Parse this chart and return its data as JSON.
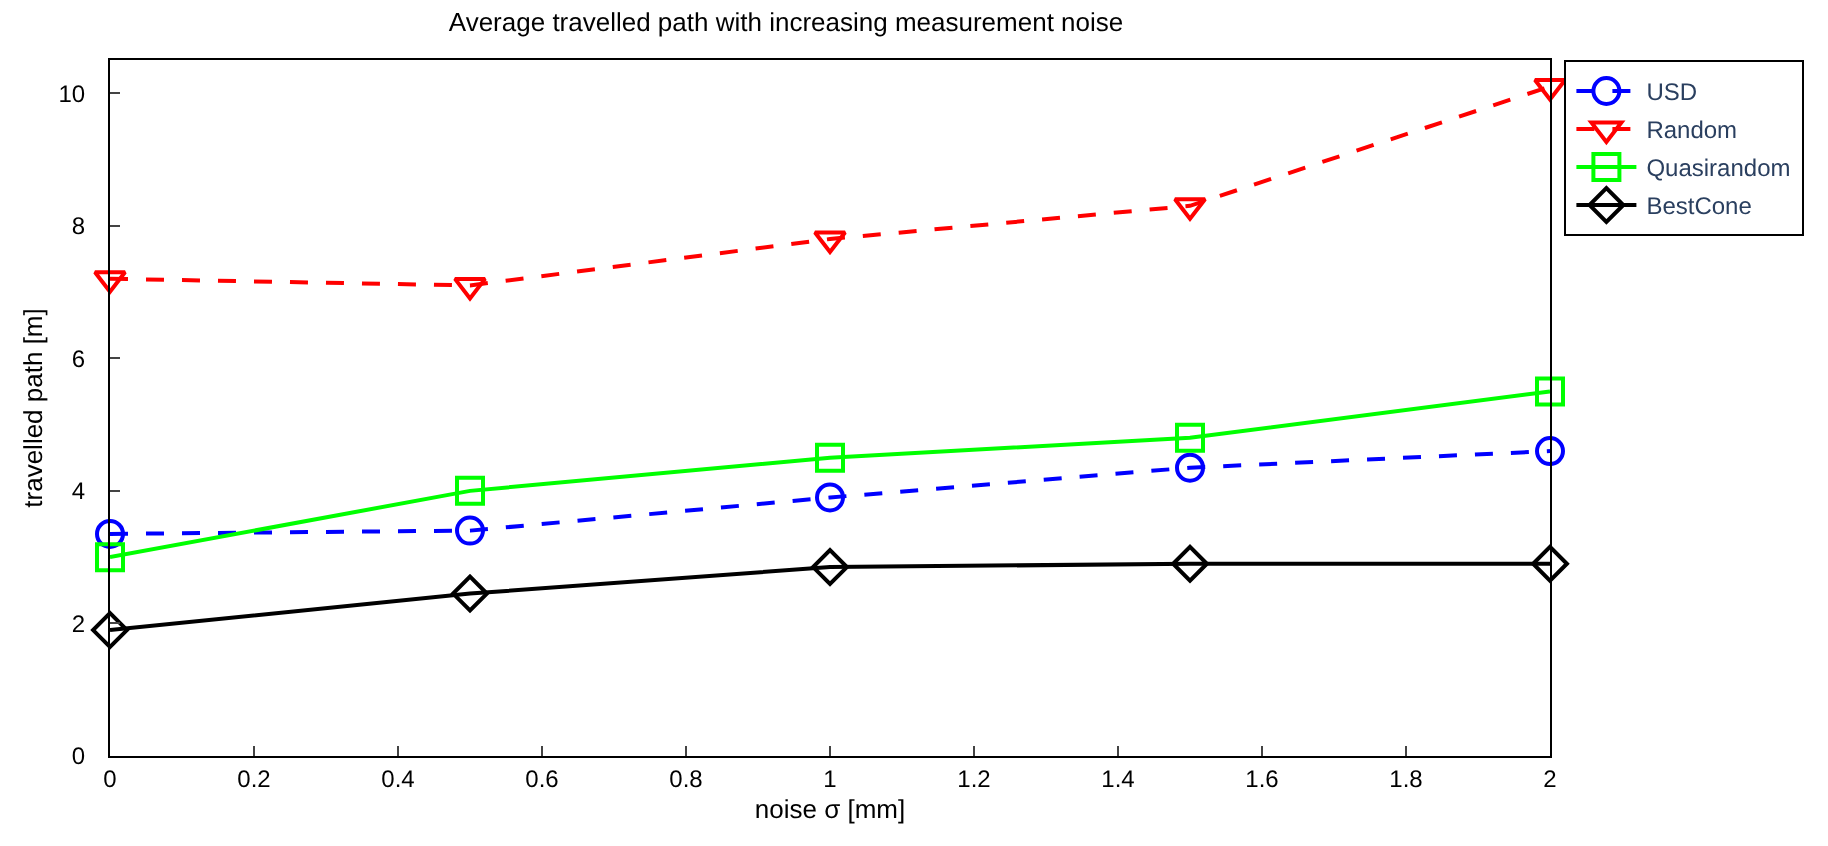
{
  "chart_data": {
    "type": "line",
    "title": "Average travelled path with increasing measurement noise",
    "xlabel": "noise σ [mm]",
    "ylabel": "travelled path [m]",
    "x": [
      0,
      0.5,
      1,
      1.5,
      2
    ],
    "series": [
      {
        "name": "USD",
        "color": "#0000ff",
        "values": [
          3.35,
          3.4,
          3.9,
          4.35,
          4.6
        ],
        "marker": "circle",
        "line_style": "dashed"
      },
      {
        "name": "Random",
        "color": "#ff0000",
        "values": [
          7.2,
          7.1,
          7.8,
          8.3,
          10.1
        ],
        "marker": "triangle",
        "line_style": "dashed"
      },
      {
        "name": "Quasirandom",
        "color": "#00ff00",
        "values": [
          3.0,
          4.0,
          4.5,
          4.8,
          5.5
        ],
        "marker": "square",
        "line_style": "solid"
      },
      {
        "name": "BestCone",
        "color": "#000000",
        "values": [
          1.9,
          2.45,
          2.85,
          2.9,
          2.9
        ],
        "marker": "diamond",
        "line_style": "solid"
      }
    ],
    "xlim": [
      0,
      2
    ],
    "xticks": [
      0,
      0.2,
      0.4,
      0.6,
      0.8,
      1,
      1.2,
      1.4,
      1.6,
      1.8,
      2
    ],
    "ylim": [
      0,
      10.5
    ],
    "yticks": [
      0,
      2,
      4,
      6,
      8,
      10
    ],
    "legend": "top right"
  }
}
